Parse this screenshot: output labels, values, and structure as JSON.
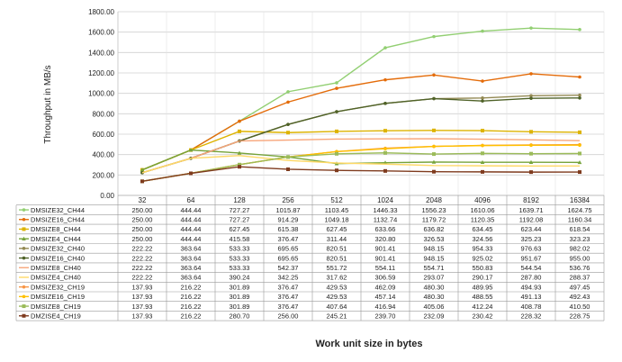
{
  "chart_data": {
    "type": "line",
    "title": "",
    "xlabel": "Work unit size in bytes",
    "ylabel": "Throughput in MB/s",
    "ylim": [
      0,
      1800
    ],
    "yticks": [
      "0.00",
      "200.00",
      "400.00",
      "600.00",
      "800.00",
      "1000.00",
      "1200.00",
      "1400.00",
      "1600.00",
      "1800.00"
    ],
    "categories": [
      "32",
      "64",
      "128",
      "256",
      "512",
      "1024",
      "2048",
      "4096",
      "8192",
      "16384"
    ],
    "grid": true,
    "legend": "data-table-below",
    "series": [
      {
        "name": "DMSIZE32_CH44",
        "color": "#92cf72",
        "marker": "circle",
        "values": [
          "250.00",
          "444.44",
          "727.27",
          "1015.87",
          "1103.45",
          "1446.33",
          "1556.23",
          "1610.06",
          "1639.71",
          "1624.75"
        ]
      },
      {
        "name": "DMSIZE16_CH44",
        "color": "#e46c0a",
        "marker": "circle",
        "values": [
          "250.00",
          "444.44",
          "727.27",
          "914.29",
          "1049.18",
          "1132.74",
          "1179.72",
          "1120.35",
          "1192.08",
          "1160.34"
        ]
      },
      {
        "name": "DMSIZE8_CH44",
        "color": "#ddb300",
        "marker": "square",
        "values": [
          "250.00",
          "444.44",
          "627.45",
          "615.38",
          "627.45",
          "633.66",
          "636.82",
          "634.45",
          "623.44",
          "618.54"
        ]
      },
      {
        "name": "DMSIZE4_CH44",
        "color": "#76a33a",
        "marker": "triangle",
        "values": [
          "250.00",
          "444.44",
          "415.58",
          "376.47",
          "311.44",
          "320.80",
          "326.53",
          "324.56",
          "325.23",
          "323.23"
        ]
      },
      {
        "name": "DMSIZE32_CH40",
        "color": "#938953",
        "marker": "circle",
        "values": [
          "222.22",
          "363.64",
          "533.33",
          "695.65",
          "820.51",
          "901.41",
          "948.15",
          "954.33",
          "976.63",
          "982.02"
        ]
      },
      {
        "name": "DMSIZE16_CH40",
        "color": "#4f6228",
        "marker": "circle",
        "values": [
          "222.22",
          "363.64",
          "533.33",
          "695.65",
          "820.51",
          "901.41",
          "948.15",
          "925.02",
          "951.67",
          "955.00"
        ]
      },
      {
        "name": "DMSIZE8_CH40",
        "color": "#f7a57a",
        "marker": "none",
        "values": [
          "222.22",
          "363.64",
          "533.33",
          "542.37",
          "551.72",
          "554.11",
          "554.71",
          "550.83",
          "544.54",
          "536.76"
        ]
      },
      {
        "name": "DMSIZE4_CH40",
        "color": "#ffd966",
        "marker": "none",
        "values": [
          "222.22",
          "363.64",
          "390.24",
          "342.25",
          "317.62",
          "306.59",
          "293.07",
          "290.17",
          "287.80",
          "288.37"
        ]
      },
      {
        "name": "DMSIZE32_CH19",
        "color": "#f79646",
        "marker": "circle",
        "values": [
          "137.93",
          "216.22",
          "301.89",
          "376.47",
          "429.53",
          "462.09",
          "480.30",
          "489.95",
          "494.93",
          "497.45"
        ]
      },
      {
        "name": "DMSIZE16_CH19",
        "color": "#ffc000",
        "marker": "circle",
        "values": [
          "137.93",
          "216.22",
          "301.89",
          "376.47",
          "429.53",
          "457.14",
          "480.30",
          "488.55",
          "491.13",
          "492.43"
        ]
      },
      {
        "name": "DMSIZE8_CH19",
        "color": "#9bbb59",
        "marker": "square",
        "values": [
          "137.93",
          "216.22",
          "301.89",
          "376.47",
          "407.64",
          "416.94",
          "405.06",
          "412.24",
          "408.78",
          "410.50"
        ]
      },
      {
        "name": "DMZISE4_CH19",
        "color": "#7f3b1e",
        "marker": "square",
        "values": [
          "137.93",
          "216.22",
          "280.70",
          "256.00",
          "245.21",
          "239.70",
          "232.09",
          "230.42",
          "228.32",
          "228.75"
        ]
      }
    ]
  }
}
